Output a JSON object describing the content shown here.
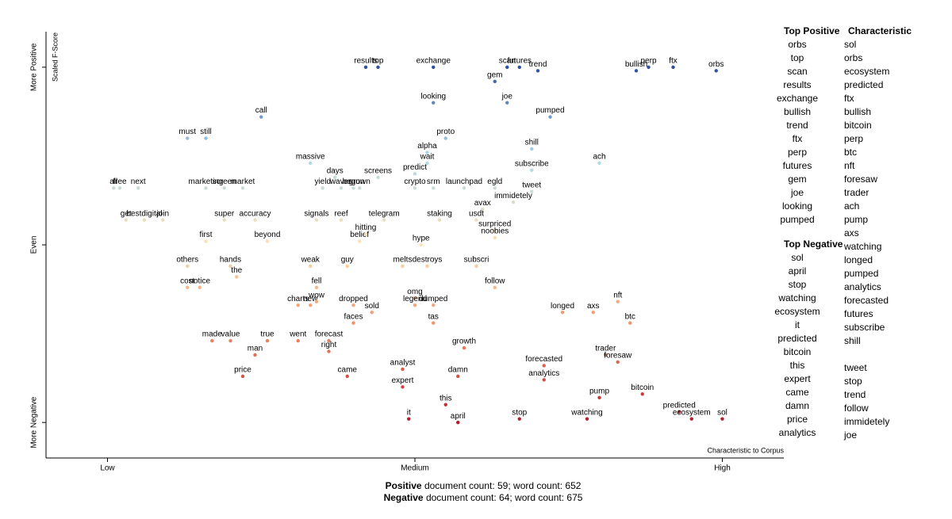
{
  "chart_data": {
    "type": "scatter",
    "x_axis_label": "Characteristic to Corpus",
    "y_axis_label": "Scaled F-Score",
    "xlim": [
      -0.1,
      1.1
    ],
    "ylim": [
      -0.1,
      1.1
    ],
    "xticks": [
      {
        "value": 0,
        "label": "Low"
      },
      {
        "value": 0.5,
        "label": "Medium"
      },
      {
        "value": 1,
        "label": "High"
      }
    ],
    "yticks": [
      {
        "value": 0,
        "label": "More Negative"
      },
      {
        "value": 0.5,
        "label": "Even"
      },
      {
        "value": 1,
        "label": "More Positive"
      }
    ],
    "color_scale": [
      "#b2182b",
      "#ef8a62",
      "#fde0b0",
      "#abd9e9",
      "#2c4fa3"
    ],
    "point_labels": [
      "results",
      "top",
      "exchange",
      "scan",
      "futures",
      "trend",
      "gem",
      "bullish",
      "perp",
      "ftx",
      "orbs",
      "looking",
      "joe",
      "pumped",
      "call",
      "must",
      "still",
      "proto",
      "alpha",
      "shill",
      "wait",
      "massive",
      "days",
      "screens",
      "predict",
      "subscribe",
      "ach",
      "all",
      "free",
      "next",
      "marketing",
      "screen",
      "market",
      "yield",
      "waves",
      "begun",
      "grown",
      "crypto",
      "srm",
      "launchpad",
      "egld",
      "tweet",
      "immidetely",
      "avax",
      "usdt",
      "get",
      "bestdigital",
      "join",
      "super",
      "accuracy",
      "signals",
      "reef",
      "telegram",
      "staking",
      "first",
      "beyond",
      "belief",
      "hitting",
      "surpriced",
      "noobies",
      "hype",
      "others",
      "hands",
      "the",
      "cost",
      "notice",
      "weak",
      "guy",
      "melts",
      "destroys",
      "subscri",
      "fell",
      "omg",
      "charts",
      "new",
      "wow",
      "dropped",
      "legend",
      "dumped",
      "sold",
      "follow",
      "nft",
      "longed",
      "axs",
      "faces",
      "tas",
      "btc",
      "made",
      "value",
      "true",
      "went",
      "forecast",
      "man",
      "right",
      "growth",
      "trader",
      "forecasted",
      "foresaw",
      "analyst",
      "price",
      "came",
      "damn",
      "analytics",
      "expert",
      "bitcoin",
      "pump",
      "predicted",
      "ecosystem",
      "this",
      "it",
      "april",
      "stop",
      "watching",
      "sol"
    ],
    "x": [
      0.42,
      0.44,
      0.53,
      0.65,
      0.67,
      0.7,
      0.63,
      0.86,
      0.88,
      0.92,
      0.99,
      0.53,
      0.65,
      0.72,
      0.25,
      0.13,
      0.16,
      0.55,
      0.52,
      0.69,
      0.52,
      0.33,
      0.37,
      0.44,
      0.5,
      0.69,
      0.8,
      0.01,
      0.02,
      0.05,
      0.16,
      0.19,
      0.22,
      0.35,
      0.38,
      0.4,
      0.41,
      0.5,
      0.53,
      0.58,
      0.63,
      0.69,
      0.66,
      0.61,
      0.6,
      0.03,
      0.06,
      0.09,
      0.19,
      0.24,
      0.34,
      0.38,
      0.45,
      0.54,
      0.16,
      0.26,
      0.41,
      0.42,
      0.63,
      0.63,
      0.51,
      0.13,
      0.2,
      0.21,
      0.13,
      0.15,
      0.33,
      0.39,
      0.48,
      0.52,
      0.6,
      0.34,
      0.5,
      0.31,
      0.33,
      0.34,
      0.4,
      0.5,
      0.53,
      0.43,
      0.63,
      0.83,
      0.74,
      0.79,
      0.4,
      0.53,
      0.85,
      0.17,
      0.2,
      0.26,
      0.31,
      0.36,
      0.24,
      0.36,
      0.58,
      0.81,
      0.71,
      0.83,
      0.48,
      0.22,
      0.39,
      0.57,
      0.71,
      0.48,
      0.87,
      0.8,
      0.93,
      0.95,
      0.55,
      0.49,
      0.57,
      0.67,
      0.78,
      1.0
    ],
    "values": [
      1.0,
      1.0,
      1.0,
      1.0,
      1.0,
      0.99,
      0.96,
      0.99,
      1.0,
      1.0,
      0.99,
      0.9,
      0.9,
      0.86,
      0.86,
      0.8,
      0.8,
      0.8,
      0.76,
      0.77,
      0.73,
      0.73,
      0.69,
      0.69,
      0.7,
      0.71,
      0.73,
      0.66,
      0.66,
      0.66,
      0.66,
      0.66,
      0.66,
      0.66,
      0.66,
      0.66,
      0.66,
      0.66,
      0.66,
      0.66,
      0.66,
      0.65,
      0.62,
      0.6,
      0.57,
      0.57,
      0.57,
      0.57,
      0.57,
      0.57,
      0.57,
      0.57,
      0.57,
      0.57,
      0.51,
      0.51,
      0.51,
      0.53,
      0.54,
      0.52,
      0.5,
      0.44,
      0.44,
      0.41,
      0.38,
      0.38,
      0.44,
      0.44,
      0.44,
      0.44,
      0.44,
      0.38,
      0.35,
      0.33,
      0.33,
      0.34,
      0.33,
      0.33,
      0.33,
      0.31,
      0.38,
      0.34,
      0.31,
      0.31,
      0.28,
      0.28,
      0.28,
      0.23,
      0.23,
      0.23,
      0.23,
      0.23,
      0.19,
      0.2,
      0.21,
      0.19,
      0.16,
      0.17,
      0.15,
      0.13,
      0.13,
      0.13,
      0.12,
      0.1,
      0.08,
      0.07,
      0.03,
      0.01,
      0.05,
      0.01,
      0.0,
      0.01,
      0.01,
      0.01
    ]
  },
  "side_panel": {
    "top_positive": {
      "title": "Top Positive",
      "items": [
        "orbs",
        "top",
        "scan",
        "results",
        "exchange",
        "bullish",
        "trend",
        "ftx",
        "perp",
        "futures",
        "gem",
        "joe",
        "looking",
        "pumped"
      ]
    },
    "characteristic": {
      "title": "Characteristic",
      "items": [
        "sol",
        "orbs",
        "ecosystem",
        "predicted",
        "ftx",
        "bullish",
        "bitcoin",
        "perp",
        "btc",
        "nft",
        "foresaw",
        "trader",
        "ach",
        "pump",
        "axs",
        "watching",
        "longed",
        "pumped",
        "analytics",
        "forecasted",
        "futures",
        "subscribe",
        "shill",
        "tweet",
        "stop",
        "trend",
        "follow",
        "immidetely",
        "joe"
      ]
    },
    "top_negative": {
      "title": "Top Negative",
      "items": [
        "sol",
        "april",
        "stop",
        "watching",
        "ecosystem",
        "it",
        "predicted",
        "bitcoin",
        "this",
        "expert",
        "came",
        "damn",
        "price",
        "analytics"
      ]
    }
  },
  "footer": [
    {
      "label": "Positive",
      "text": "document count: 59; word count: 652"
    },
    {
      "label": "Negative",
      "text": "document count: 64; word count: 675"
    }
  ]
}
